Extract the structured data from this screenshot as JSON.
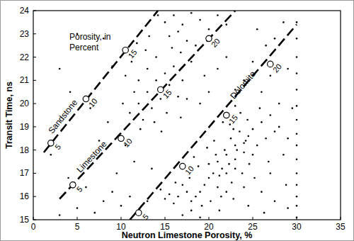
{
  "chart_data": {
    "type": "scatter",
    "xlabel": "Neutron Limestone Porosity, %",
    "ylabel": "Transit Time, ns",
    "annotation": "Porosity, in Percent",
    "xlim": [
      0,
      35
    ],
    "ylim": [
      15,
      24
    ],
    "xticks": [
      0,
      5,
      10,
      15,
      20,
      25,
      30,
      35
    ],
    "yticks": [
      15,
      16,
      17,
      18,
      19,
      20,
      21,
      22,
      23,
      24
    ],
    "grid": false,
    "series": [
      {
        "type": "scatter",
        "color": "#000000",
        "marker": "point",
        "x": [
          21,
          22,
          23,
          22.5,
          23.5,
          24,
          21.5,
          20.5,
          22,
          23,
          24.5,
          20,
          19.5,
          21,
          22,
          23,
          24,
          22.8,
          21.8,
          20.8,
          19,
          18.5,
          18,
          17.5,
          20,
          21.2,
          22.3,
          23.2,
          24.2,
          25,
          25.5,
          24.6,
          23.8,
          22.6,
          21.4,
          20.2,
          19.2,
          26,
          25,
          26.5,
          27,
          24.4,
          23.6,
          22.4,
          20.6,
          19.8,
          18.8,
          17.8,
          17,
          16.5,
          16,
          15.5,
          15,
          14.5,
          16.2,
          18.3,
          21.6,
          23,
          25.8,
          27.5,
          28,
          26.8,
          25.2,
          24,
          22.8,
          21.2,
          26,
          27,
          28.5,
          29,
          12,
          13,
          14,
          13.5,
          12.5,
          14.5,
          15,
          13,
          12,
          11.5,
          14,
          15.5,
          16,
          12.8,
          11,
          13.8,
          15.2,
          16.5,
          17,
          11.8,
          10.5,
          14.6,
          12.2,
          16.8,
          17.5,
          10.2,
          18,
          13.2,
          15.8,
          11.2,
          15,
          16,
          17,
          18,
          16.5,
          15.5,
          17.5,
          19,
          14.2,
          18.5,
          20,
          21,
          22,
          16.8,
          3,
          5,
          7,
          8,
          9,
          10,
          11,
          12,
          13,
          6,
          9.5,
          4,
          11.5,
          13.5,
          2,
          7.5,
          10.5,
          8.5,
          6.5,
          3,
          5,
          4.2,
          9,
          8,
          26,
          27,
          28,
          29,
          25,
          26.5,
          24,
          23,
          27.5,
          28.5,
          25.5,
          29.5,
          28.8,
          27.5,
          26.3,
          29,
          24.5,
          21,
          20,
          19,
          22,
          19.5,
          30,
          30,
          30,
          30,
          30,
          30,
          30,
          30,
          30,
          30,
          30,
          30,
          30,
          30,
          30,
          17,
          18,
          19
        ],
        "values": [
          17.5,
          17.8,
          18.2,
          18.5,
          18.8,
          18.3,
          17.2,
          17,
          17,
          17.6,
          18.6,
          16.8,
          16.5,
          16.4,
          16.2,
          17.2,
          17.9,
          18.9,
          18,
          17.8,
          16.2,
          16,
          15.8,
          16.2,
          17.4,
          16.9,
          17.4,
          18,
          18.4,
          18.9,
          18.2,
          17.4,
          17,
          16.6,
          16,
          15.8,
          15.6,
          19.2,
          17.8,
          18.5,
          19.5,
          19.3,
          19.6,
          19.1,
          18.4,
          18.1,
          17.3,
          16.8,
          16.5,
          16,
          15.7,
          16.1,
          15.9,
          16.3,
          16.6,
          17.7,
          19.2,
          19.9,
          19.8,
          18.8,
          19,
          17.5,
          16.8,
          16.4,
          15.9,
          15.4,
          16.2,
          17,
          17.8,
          18.5,
          20,
          20.5,
          21,
          19.8,
          19.3,
          20.2,
          21.3,
          21.5,
          21,
          20.5,
          22,
          20.8,
          21.6,
          22.3,
          19.6,
          19.2,
          19.6,
          20.3,
          21,
          22.6,
          21.2,
          18.8,
          18.9,
          19.4,
          20.2,
          20,
          21.8,
          22.9,
          22.4,
          21.8,
          23.5,
          23.8,
          23.4,
          23.9,
          23.1,
          22.9,
          22.7,
          23.6,
          23.8,
          22.5,
          23.2,
          23.8,
          23.4,
          22.2,
          15.2,
          15.5,
          15.3,
          15.8,
          16.2,
          15.6,
          16,
          15.4,
          15.8,
          16.4,
          17,
          16.8,
          17.5,
          17.2,
          17.8,
          18.4,
          18.2,
          19.2,
          19.8,
          21.5,
          23,
          20.5,
          21.6,
          22.8,
          20.5,
          21.2,
          20,
          21.5,
          21.8,
          22.5,
          21,
          20.6,
          22.8,
          23.5,
          23.2,
          19.8,
          16.5,
          15.8,
          15.3,
          15.5,
          15.6,
          21.5,
          20.5,
          20,
          22,
          21.2,
          15.1,
          15.6,
          16,
          16.5,
          17,
          17.6,
          18.2,
          18.7,
          19.3,
          19.9,
          20.6,
          21.3,
          22,
          22.8,
          23.5,
          15.2,
          15.4,
          15.1
        ]
      },
      {
        "name": "Sandstone",
        "type": "line",
        "color": "#000000",
        "line_style": "dashed",
        "marker": "circle",
        "x": [
          1.2,
          14.2
        ],
        "values": [
          17.9,
          24
        ],
        "porosity_points": {
          "x": [
            2,
            6,
            10.5
          ],
          "values": [
            18.3,
            20.2,
            22.3
          ],
          "labels": [
            5,
            10,
            15
          ]
        }
      },
      {
        "name": "Limestone",
        "type": "line",
        "color": "#000000",
        "line_style": "dashed",
        "marker": "circle",
        "x": [
          3,
          23
        ],
        "values": [
          15.9,
          24
        ],
        "porosity_points": {
          "x": [
            4.5,
            10,
            14.5,
            20
          ],
          "values": [
            16.5,
            18.5,
            20.6,
            22.8
          ],
          "labels": [
            5,
            10,
            15,
            20
          ]
        }
      },
      {
        "name": "Dolomite",
        "type": "line",
        "color": "#000000",
        "line_style": "dashed",
        "marker": "circle",
        "x": [
          11,
          30
        ],
        "values": [
          15,
          23.4
        ],
        "porosity_points": {
          "x": [
            12,
            17,
            22,
            27
          ],
          "values": [
            15.3,
            17.3,
            19.5,
            21.7
          ],
          "labels": [
            5,
            10,
            15,
            20
          ]
        }
      }
    ]
  }
}
